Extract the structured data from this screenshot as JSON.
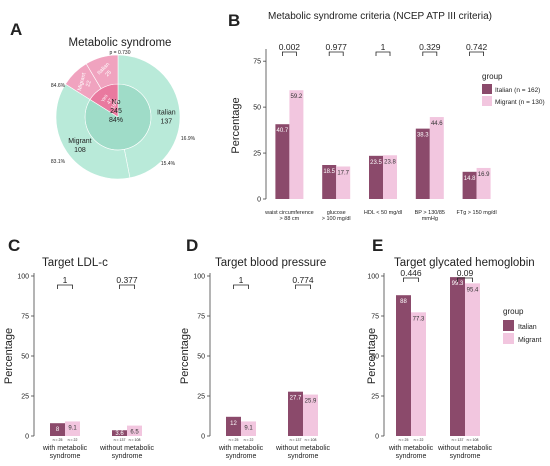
{
  "colors": {
    "italian": "#8b4a6b",
    "migrant": "#f2c6df",
    "pie_outer": "#b9ead9",
    "pie_inner": "#9fdcc8",
    "pie_pink_outer": "#f0a3bf",
    "pie_pink_inner": "#e9799f",
    "axis": "#444444",
    "text": "#222222"
  },
  "panel_letters": {
    "A": "A",
    "B": "B",
    "C": "C",
    "D": "D",
    "E": "E"
  },
  "legend": {
    "b_title": "group",
    "b_items": [
      "Italian (n = 162)",
      "Migrant (n = 130)"
    ],
    "e_title": "group",
    "e_items": [
      "Italian",
      "Migrant"
    ]
  },
  "chart_data": [
    {
      "id": "A",
      "type": "pie",
      "title": "Metabolic syndrome",
      "subtitle": "p = 0.730",
      "inner_ring": [
        {
          "label": "No",
          "count": 245,
          "percent_label": "84%"
        },
        {
          "label": "Yes",
          "count": 47,
          "percent_label": "16%"
        }
      ],
      "outer_ring": [
        {
          "label": "Italian",
          "count": 137,
          "percent_label": "84.6%"
        },
        {
          "label": "Migrant",
          "count": 108,
          "percent_label": "83.1%"
        },
        {
          "label": "Migrant",
          "count": 22,
          "percent_label": "16.9%"
        },
        {
          "label": "Italian",
          "count": 25,
          "percent_label": "15.4%"
        }
      ]
    },
    {
      "id": "B",
      "type": "bar",
      "title": "Metabolic syndrome criteria (NCEP ATP III criteria)",
      "ylabel": "Percentage",
      "ylim": [
        0,
        80
      ],
      "yticks": [
        0,
        25,
        50,
        75
      ],
      "categories": [
        [
          "waist circumference",
          "> 88 cm"
        ],
        [
          "glucose",
          "> 100 mg/dl"
        ],
        [
          "HDL < 50 mg/dl"
        ],
        [
          "BP > 130/85",
          "mmHg"
        ],
        [
          "FTg > 150 mg/dl"
        ]
      ],
      "series": [
        {
          "name": "Italian (n = 162)",
          "values": [
            40.7,
            18.5,
            23.5,
            38.3,
            14.8
          ],
          "labels": [
            "40.7",
            "18.5",
            "23.5",
            "38.3",
            "14.8"
          ]
        },
        {
          "name": "Migrant (n = 130)",
          "values": [
            59.2,
            17.7,
            23.8,
            44.6,
            16.9
          ],
          "labels": [
            "59.2",
            "17.7",
            "23.8",
            "44.6",
            "16.9"
          ]
        }
      ],
      "pvalues": [
        "0.002",
        "0.977",
        "1",
        "0.329",
        "0.742"
      ]
    },
    {
      "id": "C",
      "type": "bar",
      "title": "Target LDL-c",
      "ylabel": "Percentage",
      "ylim": [
        0,
        100
      ],
      "yticks": [
        0,
        25,
        50,
        75,
        100
      ],
      "categories": [
        [
          "with metabolic",
          "syndrome"
        ],
        [
          "without metabolic",
          "syndrome"
        ]
      ],
      "n_labels": [
        [
          "n = 25",
          "n = 22"
        ],
        [
          "n = 137",
          "n = 108"
        ]
      ],
      "series": [
        {
          "values": [
            8,
            3.6
          ],
          "labels": [
            "8",
            "3.6"
          ]
        },
        {
          "values": [
            9.1,
            6.5
          ],
          "labels": [
            "9.1",
            "6.5"
          ]
        }
      ],
      "pvalues": [
        "1",
        "0.377"
      ]
    },
    {
      "id": "D",
      "type": "bar",
      "title": "Target blood pressure",
      "ylabel": "Percentage",
      "ylim": [
        0,
        100
      ],
      "yticks": [
        0,
        25,
        50,
        75,
        100
      ],
      "categories": [
        [
          "with metabolic",
          "syndrome"
        ],
        [
          "without metabolic",
          "syndrome"
        ]
      ],
      "n_labels": [
        [
          "n = 25",
          "n = 22"
        ],
        [
          "n = 137",
          "n = 108"
        ]
      ],
      "series": [
        {
          "values": [
            12,
            27.7
          ],
          "labels": [
            "12",
            "27.7"
          ]
        },
        {
          "values": [
            9.1,
            25.9
          ],
          "labels": [
            "9.1",
            "25.9"
          ]
        }
      ],
      "pvalues": [
        "1",
        "0.774"
      ]
    },
    {
      "id": "E",
      "type": "bar",
      "title": "Target glycated hemoglobin",
      "ylabel": "Percentage",
      "ylim": [
        0,
        100
      ],
      "yticks": [
        0,
        25,
        50,
        75,
        100
      ],
      "categories": [
        [
          "with metabolic",
          "syndrome"
        ],
        [
          "without metabolic",
          "syndrome"
        ]
      ],
      "n_labels": [
        [
          "n = 25",
          "n = 22"
        ],
        [
          "n = 137",
          "n = 108"
        ]
      ],
      "series": [
        {
          "name": "Italian",
          "values": [
            88,
            99.3
          ],
          "labels": [
            "88",
            "99.3"
          ]
        },
        {
          "name": "Migrant",
          "values": [
            77.3,
            95.4
          ],
          "labels": [
            "77.3",
            "95.4"
          ]
        }
      ],
      "pvalues": [
        "0.446",
        "0.09"
      ]
    }
  ]
}
